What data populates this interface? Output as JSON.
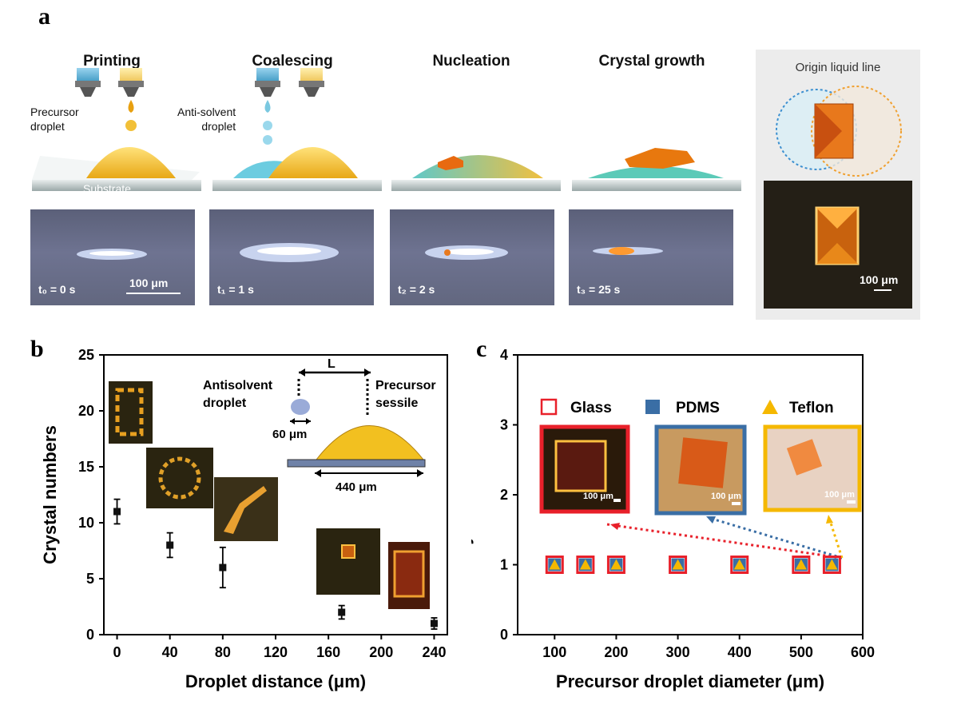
{
  "panel_a": {
    "label": "a",
    "stages": [
      "Printing",
      "Coalescing",
      "Nucleation",
      "Crystal growth"
    ],
    "precursor_label": "Precursor\ndroplet",
    "antisolvent_label": "Anti-solvent\ndroplet",
    "substrate_label": "Substrate",
    "times": [
      "t₀ = 0 s",
      "t₁ = 1 s",
      "t₂ = 2 s",
      "t₃ = 25 s"
    ],
    "scalebar": "100 μm",
    "origin_label": "Origin liquid line",
    "origin_scalebar": "100 μm"
  },
  "panel_b": {
    "label": "b",
    "inset": {
      "L": "L",
      "antisolvent": "Antisolvent\ndroplet",
      "precursor": "Precursor\nsessile",
      "d60": "60 μm",
      "d440": "440 μm"
    }
  },
  "panel_c": {
    "label": "c",
    "legend": [
      "Glass",
      "PDMS",
      "Teflon"
    ],
    "scalebar": "100 μm"
  },
  "colors": {
    "glass": "#e8202a",
    "pdms": "#3a6ea5",
    "teflon": "#f5b800"
  },
  "chart_data": [
    {
      "type": "scatter",
      "title": "",
      "xlabel": "Droplet distance (μm)",
      "ylabel": "Crystal numbers",
      "xlim": [
        -10,
        250
      ],
      "ylim": [
        0,
        25
      ],
      "xticks": [
        0,
        40,
        80,
        120,
        160,
        200,
        240
      ],
      "yticks": [
        0,
        5,
        10,
        15,
        20,
        25
      ],
      "x": [
        0,
        40,
        80,
        170,
        240
      ],
      "y": [
        11,
        8,
        6,
        2,
        1
      ],
      "yerr": [
        1.1,
        1.1,
        1.8,
        0.6,
        0.5
      ]
    },
    {
      "type": "scatter",
      "title": "",
      "xlabel": "Precursor droplet diameter (μm)",
      "ylabel": "Crystal numbers",
      "xlim": [
        40,
        600
      ],
      "ylim": [
        0,
        4
      ],
      "xticks": [
        100,
        200,
        300,
        400,
        500,
        600
      ],
      "yticks": [
        0,
        1,
        2,
        3,
        4
      ],
      "x": [
        100,
        150,
        200,
        300,
        400,
        500,
        550
      ],
      "series": [
        {
          "name": "Glass",
          "values": [
            1,
            1,
            1,
            1,
            1,
            1,
            1
          ]
        },
        {
          "name": "PDMS",
          "values": [
            1,
            1,
            1,
            1,
            1,
            1,
            1
          ]
        },
        {
          "name": "Teflon",
          "values": [
            1,
            1,
            1,
            1,
            1,
            1,
            1
          ]
        }
      ]
    }
  ]
}
